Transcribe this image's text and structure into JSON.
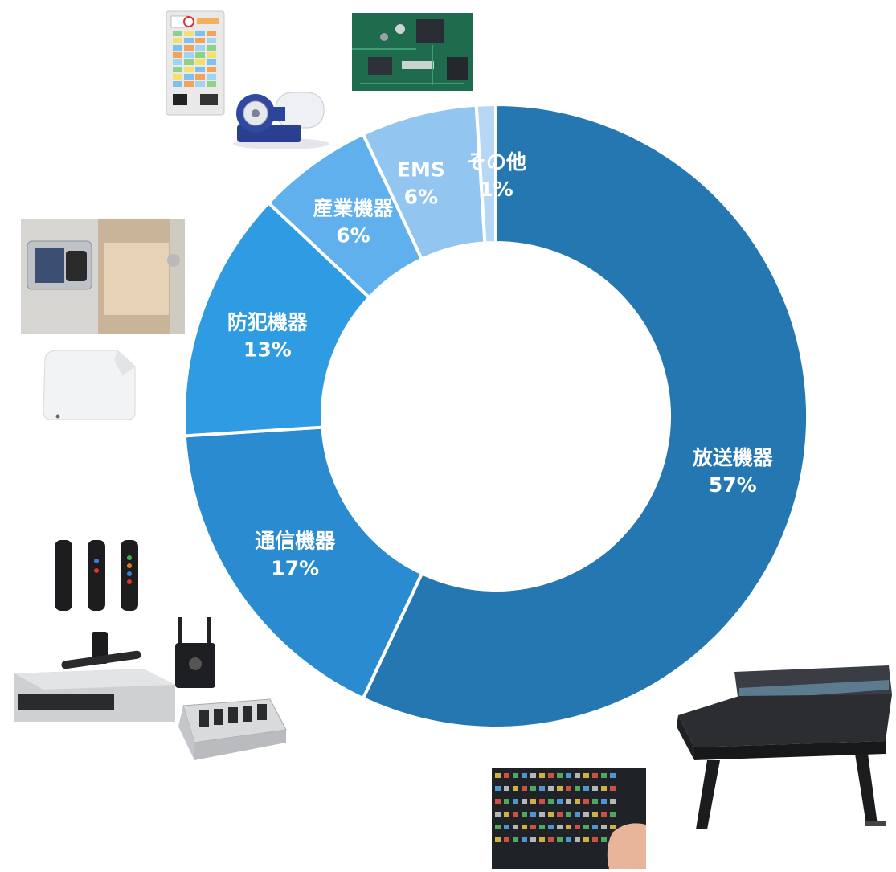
{
  "chart_data": {
    "type": "pie",
    "donut": true,
    "title": "",
    "unit": "%",
    "categories": [
      "放送機器",
      "通信機器",
      "防犯機器",
      "産業機器",
      "EMS",
      "その他"
    ],
    "values": [
      57,
      17,
      13,
      6,
      6,
      1
    ],
    "labels": [
      "57%",
      "17%",
      "13%",
      "6%",
      "6%",
      "1%"
    ],
    "colors": [
      "#2577b2",
      "#2b8bd1",
      "#2e9be2",
      "#5fb0ec",
      "#92c6f1",
      "#b6d8f5"
    ],
    "start": "top, clockwise",
    "legend": "none"
  },
  "photos": [
    {
      "name": "ticket-machine-photo",
      "icon": "ticket-vending-machine"
    },
    {
      "name": "pump-photo",
      "icon": "industrial-pump"
    },
    {
      "name": "circuit-board-photo",
      "icon": "circuit-board"
    },
    {
      "name": "door-lock-photo",
      "icon": "door-lock-reader"
    },
    {
      "name": "sensor-photo",
      "icon": "security-sensor"
    },
    {
      "name": "transmitters-photo",
      "icon": "handheld-transmitters"
    },
    {
      "name": "wireless-system-photo",
      "icon": "wireless-mic-rack"
    },
    {
      "name": "charger-photo",
      "icon": "battery-charger"
    },
    {
      "name": "mixing-console-photo",
      "icon": "broadcast-console"
    },
    {
      "name": "fader-panel-photo",
      "icon": "console-faders"
    }
  ]
}
